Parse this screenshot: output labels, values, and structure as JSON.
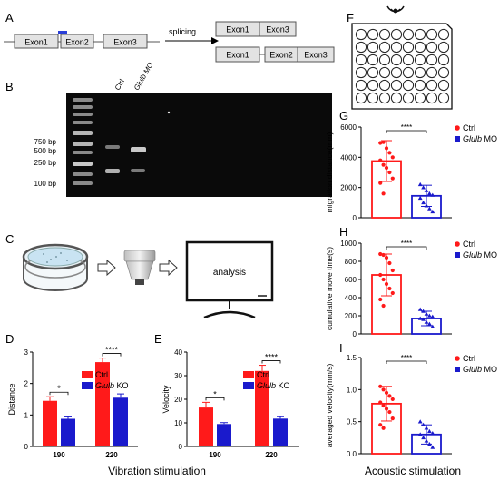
{
  "panels": {
    "A": {
      "letter": "A",
      "exons": [
        "Exon1",
        "Exon2",
        "Exon3"
      ],
      "arrow_label": "splicing",
      "product1": [
        "Exon1",
        "Exon3"
      ],
      "product2": [
        "Exon1",
        "Exon2",
        "Exon3"
      ]
    },
    "B": {
      "letter": "B",
      "lanes": [
        "Ctrl",
        "Glulb MO"
      ],
      "markers": [
        "750 bp",
        "500 bp",
        "250 bp",
        "100 bp"
      ]
    },
    "C": {
      "letter": "C",
      "screen_text": "analysis"
    },
    "D": {
      "letter": "D"
    },
    "E": {
      "letter": "E"
    },
    "F": {
      "letter": "F"
    },
    "G": {
      "letter": "G"
    },
    "H": {
      "letter": "H"
    },
    "I": {
      "letter": "I"
    }
  },
  "footers": {
    "vibration": "Vibration stimulation",
    "acoustic": "Acoustic stimulation"
  },
  "colors": {
    "ctrl": "#ff1a1a",
    "ko": "#1a1acc",
    "gel": "#0a0a0a"
  },
  "chart_data": [
    {
      "id": "D",
      "type": "bar",
      "ylabel": "Distance",
      "categories": [
        "190",
        "220"
      ],
      "ylim": [
        0,
        3
      ],
      "yticks": [
        0,
        1,
        2,
        3
      ],
      "series": [
        {
          "name": "Ctrl",
          "values": [
            1.45,
            2.68
          ],
          "errors": [
            0.13,
            0.13
          ]
        },
        {
          "name": "Glulb KO",
          "values": [
            0.88,
            1.55
          ],
          "errors": [
            0.06,
            0.12
          ]
        }
      ],
      "significance": [
        "*",
        "****"
      ],
      "legend": "top-right"
    },
    {
      "id": "E",
      "type": "bar",
      "ylabel": "Velocity",
      "categories": [
        "190",
        "220"
      ],
      "ylim": [
        0,
        40
      ],
      "yticks": [
        0,
        10,
        20,
        30,
        40
      ],
      "series": [
        {
          "name": "Ctrl",
          "values": [
            16.5,
            32.0
          ],
          "errors": [
            2.2,
            2.4
          ]
        },
        {
          "name": "Glulb KO",
          "values": [
            9.5,
            11.8
          ],
          "errors": [
            0.6,
            0.8
          ]
        }
      ],
      "significance": [
        "*",
        "****"
      ],
      "legend": "top-right"
    },
    {
      "id": "G",
      "type": "bar",
      "ylabel": "migration distance(mm)",
      "categories": [
        "Ctrl",
        "Glulb MO"
      ],
      "ylim": [
        0,
        6000
      ],
      "yticks": [
        0,
        2000,
        4000,
        6000
      ],
      "values": [
        3750,
        1450
      ],
      "errors": [
        1350,
        700
      ],
      "points": [
        [
          4950,
          5000,
          4600,
          4300,
          4000,
          3800,
          3500,
          3300,
          3000,
          2600,
          2300,
          1600
        ],
        [
          2200,
          2000,
          1800,
          1600,
          1500,
          1300,
          1000,
          800,
          600,
          400
        ]
      ],
      "significance": "****",
      "legend": [
        "Ctrl",
        "Glulb MO"
      ]
    },
    {
      "id": "H",
      "type": "bar",
      "ylabel": "cumulative move time(s)",
      "categories": [
        "Ctrl",
        "Glulb MO"
      ],
      "ylim": [
        0,
        1000
      ],
      "yticks": [
        0,
        200,
        400,
        600,
        800,
        1000
      ],
      "values": [
        650,
        170
      ],
      "errors": [
        230,
        80
      ],
      "points": [
        [
          880,
          870,
          840,
          780,
          700,
          650,
          600,
          550,
          500,
          450,
          380,
          310
        ],
        [
          270,
          250,
          220,
          200,
          190,
          170,
          160,
          130,
          110,
          80
        ]
      ],
      "significance": "****",
      "legend": [
        "Ctrl",
        "Glulb MO"
      ]
    },
    {
      "id": "I",
      "type": "bar",
      "ylabel": "averaged velocity(mm/s)",
      "categories": [
        "Ctrl",
        "Glulb MO"
      ],
      "ylim": [
        0,
        1.5
      ],
      "yticks": [
        0.0,
        0.5,
        1.0,
        1.5
      ],
      "values": [
        0.78,
        0.3
      ],
      "errors": [
        0.27,
        0.15
      ],
      "points": [
        [
          1.05,
          1.0,
          0.95,
          0.9,
          0.85,
          0.8,
          0.75,
          0.7,
          0.65,
          0.55,
          0.45,
          0.4
        ],
        [
          0.5,
          0.45,
          0.4,
          0.35,
          0.32,
          0.3,
          0.25,
          0.2,
          0.15,
          0.1
        ]
      ],
      "significance": "****",
      "legend": [
        "Ctrl",
        "Glulb MO"
      ]
    }
  ]
}
